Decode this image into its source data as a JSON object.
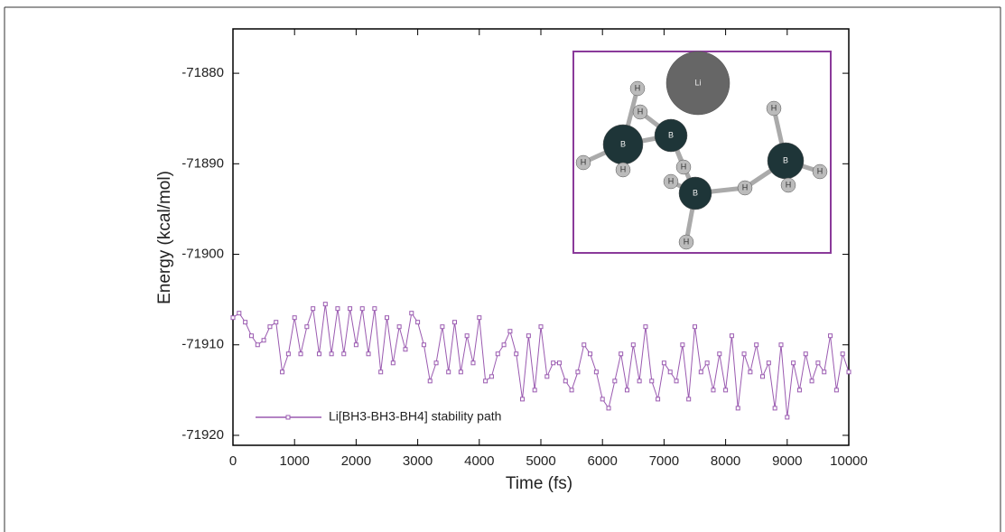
{
  "chart_data": {
    "type": "line",
    "x_label": "Time (fs)",
    "y_label": "Energy (kcal/mol)",
    "x": [
      0,
      100,
      200,
      300,
      400,
      500,
      600,
      700,
      800,
      900,
      1000,
      1100,
      1200,
      1300,
      1400,
      1500,
      1600,
      1700,
      1800,
      1900,
      2000,
      2100,
      2200,
      2300,
      2400,
      2500,
      2600,
      2700,
      2800,
      2900,
      3000,
      3100,
      3200,
      3300,
      3400,
      3500,
      3600,
      3700,
      3800,
      3900,
      4000,
      4100,
      4200,
      4300,
      4400,
      4500,
      4600,
      4700,
      4800,
      4900,
      5000,
      5100,
      5200,
      5300,
      5400,
      5500,
      5600,
      5700,
      5800,
      5900,
      6000,
      6100,
      6200,
      6300,
      6400,
      6500,
      6600,
      6700,
      6800,
      6900,
      7000,
      7100,
      7200,
      7300,
      7400,
      7500,
      7600,
      7700,
      7800,
      7900,
      8000,
      8100,
      8200,
      8300,
      8400,
      8500,
      8600,
      8700,
      8800,
      8900,
      9000,
      9100,
      9200,
      9300,
      9400,
      9500,
      9600,
      9700,
      9800,
      9900,
      10000
    ],
    "series": [
      {
        "name": "Li[BH3-BH3-BH4] stability path",
        "color": "#9a5ab0",
        "values": [
          -71907,
          -71906.5,
          -71907.5,
          -71909,
          -71910,
          -71909.5,
          -71908,
          -71907.5,
          -71913,
          -71911,
          -71907,
          -71911,
          -71908,
          -71906,
          -71911,
          -71905.5,
          -71911,
          -71906,
          -71911,
          -71906,
          -71910,
          -71906,
          -71911,
          -71906,
          -71913,
          -71907,
          -71912,
          -71908,
          -71910.5,
          -71906.5,
          -71907.5,
          -71910,
          -71914,
          -71912,
          -71908,
          -71913,
          -71907.5,
          -71913,
          -71909,
          -71912,
          -71907,
          -71914,
          -71913.5,
          -71911,
          -71910,
          -71908.5,
          -71911,
          -71916,
          -71909,
          -71915,
          -71908,
          -71913.5,
          -71912,
          -71912,
          -71914,
          -71915,
          -71913,
          -71910,
          -71911,
          -71913,
          -71916,
          -71917,
          -71914,
          -71911,
          -71915,
          -71910,
          -71914,
          -71908,
          -71914,
          -71916,
          -71912,
          -71913,
          -71914,
          -71910,
          -71916,
          -71908,
          -71913,
          -71912,
          -71915,
          -71911,
          -71915,
          -71909,
          -71917,
          -71911,
          -71913,
          -71910,
          -71913.5,
          -71912,
          -71917,
          -71910,
          -71918,
          -71912,
          -71915,
          -71911,
          -71914,
          -71912,
          -71913,
          -71909,
          -71915,
          -71911,
          -71913
        ]
      }
    ],
    "xlim": [
      0,
      10000
    ],
    "xticks": [
      0,
      1000,
      2000,
      3000,
      4000,
      5000,
      6000,
      7000,
      8000,
      9000,
      10000
    ],
    "ylim": [
      -71921.1,
      -71875.1
    ],
    "yticks": [
      -71880,
      -71890,
      -71900,
      -71910,
      -71920
    ],
    "legend": "lower left",
    "inset_atoms": [
      "Li",
      "B",
      "B",
      "B",
      "B",
      "H",
      "H",
      "H",
      "H",
      "H",
      "H",
      "H",
      "H",
      "H",
      "H",
      "H"
    ]
  }
}
